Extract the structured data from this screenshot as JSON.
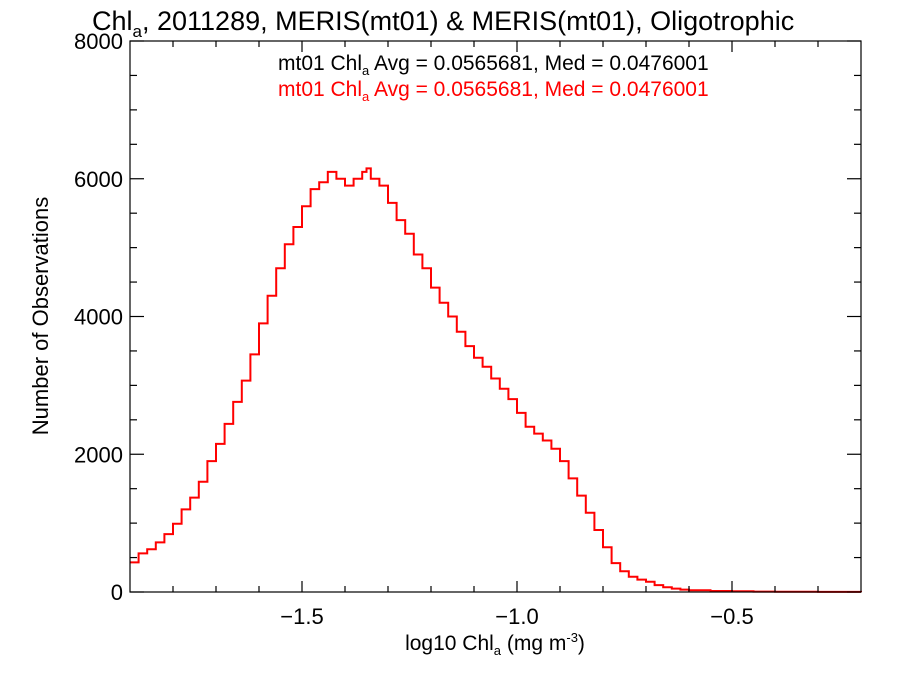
{
  "chart_data": {
    "type": "line",
    "style": "step",
    "title": {
      "prefix": "Chl",
      "sub": "a",
      "rest": ", 2011289, MERIS(mt01) & MERIS(mt01), Oligotrophic"
    },
    "xlabel": {
      "prefix": "log10 Chl",
      "sub": "a",
      "middle": " (mg m",
      "sup": "-3",
      "end": ")"
    },
    "ylabel": "Number of Observations",
    "xlim": [
      -1.9,
      -0.2
    ],
    "ylim": [
      0,
      8000
    ],
    "xticks": [
      -1.5,
      -1.0,
      -0.5
    ],
    "xtick_labels": [
      "−1.5",
      "−1.0",
      "−0.5"
    ],
    "yticks": [
      0,
      2000,
      4000,
      6000,
      8000
    ],
    "ytick_labels": [
      "0",
      "2000",
      "4000",
      "6000",
      "8000"
    ],
    "grid": false,
    "legend": [
      {
        "prefix": "mt01 Chl",
        "sub": "a",
        "rest": " Avg = 0.0565681, Med = 0.0476001",
        "color": "#000000"
      },
      {
        "prefix": "mt01 Chl",
        "sub": "a",
        "rest": " Avg = 0.0565681, Med = 0.0476001",
        "color": "#ff0000"
      }
    ],
    "series": [
      {
        "color": "#ff0000",
        "x": [
          -1.9,
          -1.88,
          -1.86,
          -1.84,
          -1.82,
          -1.8,
          -1.78,
          -1.76,
          -1.74,
          -1.72,
          -1.7,
          -1.68,
          -1.66,
          -1.64,
          -1.62,
          -1.6,
          -1.58,
          -1.56,
          -1.54,
          -1.52,
          -1.5,
          -1.48,
          -1.46,
          -1.44,
          -1.42,
          -1.4,
          -1.38,
          -1.36,
          -1.35,
          -1.34,
          -1.32,
          -1.3,
          -1.28,
          -1.26,
          -1.24,
          -1.22,
          -1.2,
          -1.18,
          -1.16,
          -1.14,
          -1.12,
          -1.1,
          -1.08,
          -1.06,
          -1.04,
          -1.02,
          -1.0,
          -0.98,
          -0.96,
          -0.94,
          -0.92,
          -0.9,
          -0.88,
          -0.86,
          -0.84,
          -0.82,
          -0.8,
          -0.78,
          -0.76,
          -0.74,
          -0.72,
          -0.7,
          -0.68,
          -0.66,
          -0.64,
          -0.62,
          -0.6,
          -0.55,
          -0.5,
          -0.45,
          -0.4,
          -0.3,
          -0.2
        ],
        "values": [
          430,
          560,
          620,
          720,
          840,
          990,
          1200,
          1370,
          1600,
          1900,
          2150,
          2440,
          2760,
          3070,
          3450,
          3900,
          4300,
          4700,
          5050,
          5300,
          5600,
          5850,
          5950,
          6100,
          6000,
          5900,
          6000,
          6100,
          6150,
          6000,
          5900,
          5650,
          5400,
          5200,
          4900,
          4700,
          4420,
          4200,
          4000,
          3780,
          3570,
          3400,
          3270,
          3100,
          2950,
          2800,
          2600,
          2400,
          2300,
          2200,
          2080,
          1900,
          1650,
          1400,
          1150,
          900,
          650,
          420,
          300,
          220,
          180,
          150,
          100,
          70,
          50,
          35,
          25,
          15,
          10,
          6,
          4,
          2,
          0
        ]
      }
    ]
  }
}
